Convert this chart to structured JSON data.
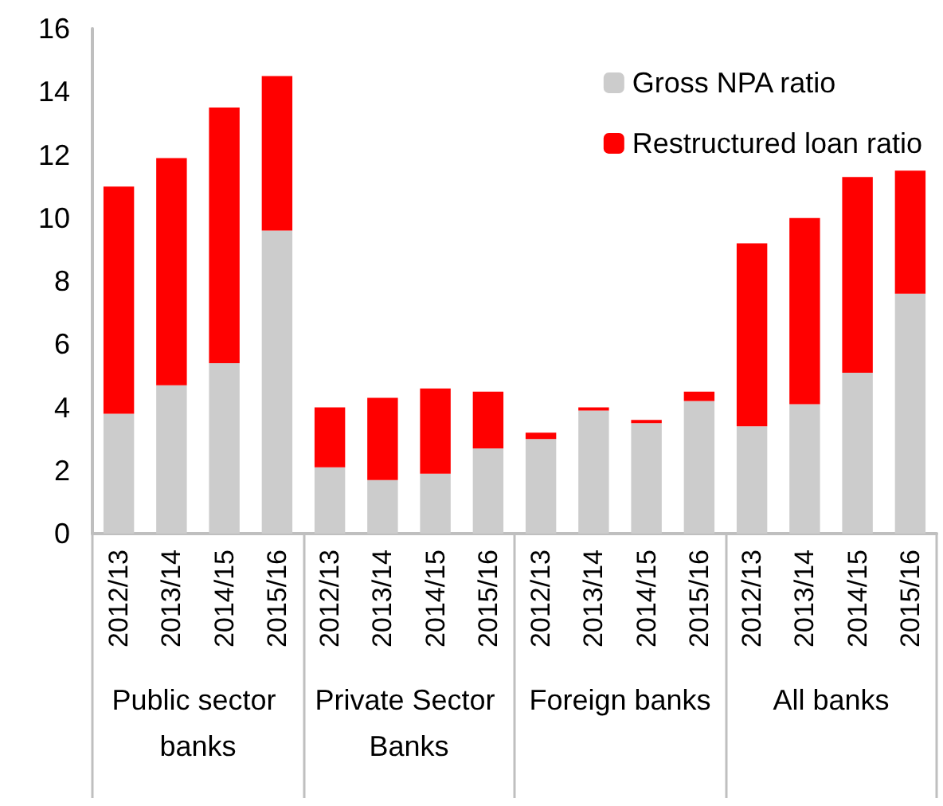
{
  "chart_data": {
    "type": "bar",
    "stacked": true,
    "categories": [
      "2012/13",
      "2013/14",
      "2014/15",
      "2015/16",
      "2012/13",
      "2013/14",
      "2014/15",
      "2015/16",
      "2012/13",
      "2013/14",
      "2014/15",
      "2015/16",
      "2012/13",
      "2013/14",
      "2014/15",
      "2015/16"
    ],
    "annotations": [
      "Public sector banks",
      "Private Sector Banks",
      "Foreign banks",
      "All banks"
    ],
    "series": [
      {
        "name": "Gross NPA ratio",
        "color": "#cccccc",
        "values": [
          3.8,
          4.7,
          5.4,
          9.6,
          2.1,
          1.7,
          1.9,
          2.7,
          3.0,
          3.9,
          3.5,
          4.2,
          3.4,
          4.1,
          5.1,
          7.6
        ]
      },
      {
        "name": "Restructured loan ratio",
        "color": "#ff0000",
        "values": [
          7.2,
          7.2,
          8.1,
          4.9,
          1.9,
          2.6,
          2.7,
          1.8,
          0.2,
          0.1,
          0.1,
          0.3,
          5.8,
          5.9,
          6.2,
          3.9
        ]
      }
    ],
    "ylim": [
      0,
      16
    ],
    "yticks": [
      0,
      2,
      4,
      6,
      8,
      10,
      12,
      14,
      16
    ],
    "legend": "top right"
  }
}
